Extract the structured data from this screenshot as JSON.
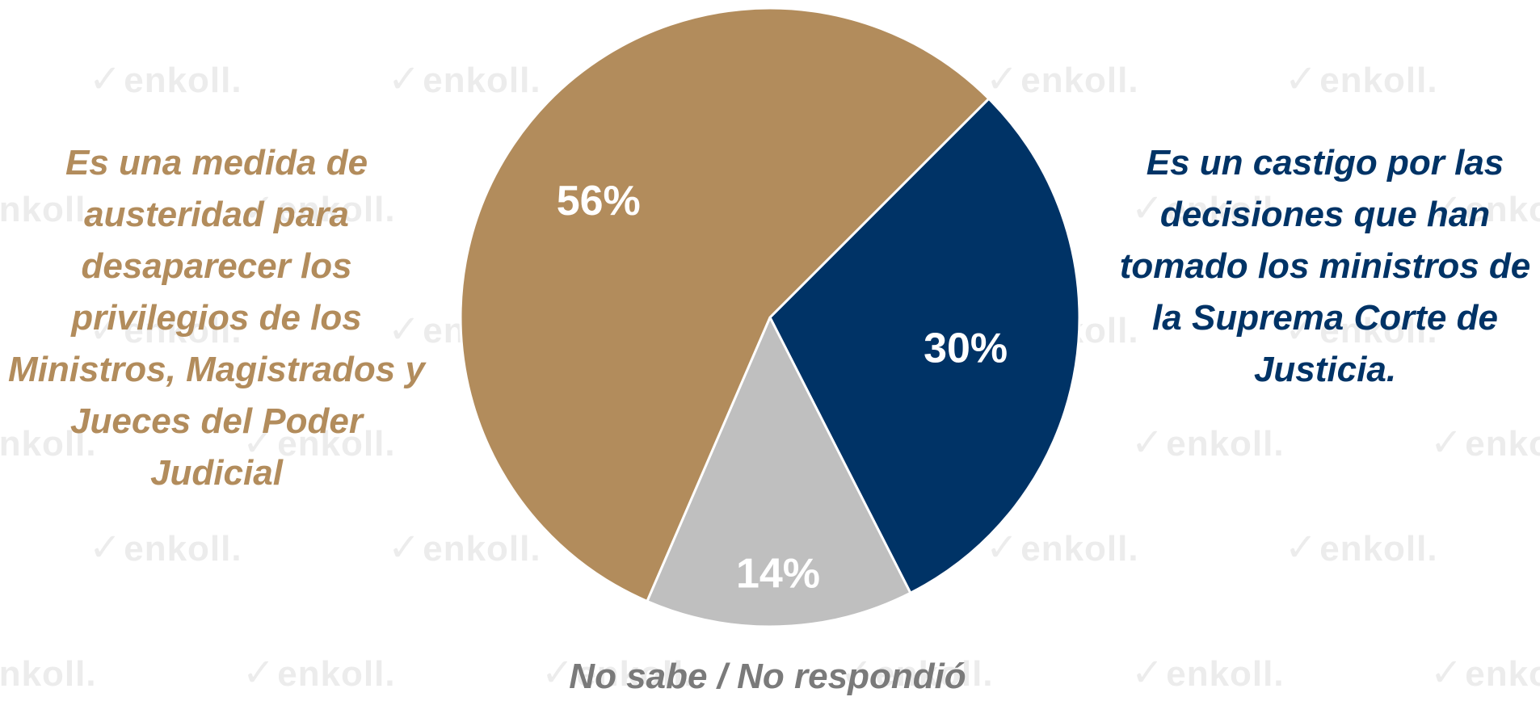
{
  "watermark": {
    "text": "enkoll."
  },
  "chart_data": {
    "type": "pie",
    "slices": [
      {
        "label": "Es una medida de austeridad para desaparecer los privilegios de los Ministros, Magistrados y Jueces del Poder Judicial",
        "value": 56,
        "value_label": "56%",
        "color": "#b28c5c"
      },
      {
        "label": "Es un castigo por las decisiones que han tomado los ministros de la Suprema Corte de Justicia.",
        "value": 30,
        "value_label": "30%",
        "color": "#003366"
      },
      {
        "label": "No sabe / No respondió",
        "value": 14,
        "value_label": "14%",
        "color": "#bfbfbf"
      }
    ],
    "legend": "none",
    "slice_order": "clockwise starting at the upper-right edge of the 56% slice"
  }
}
